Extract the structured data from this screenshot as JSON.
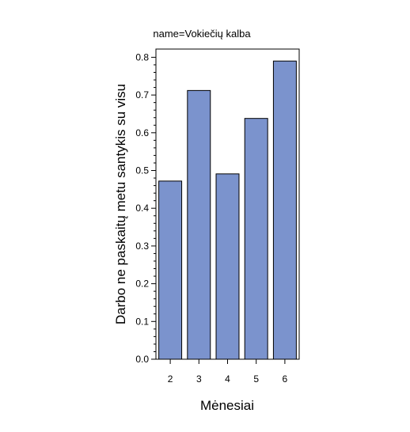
{
  "chart_data": {
    "type": "bar",
    "panel_title": "name=Vokiečių kalba",
    "categories": [
      "2",
      "3",
      "4",
      "5",
      "6"
    ],
    "values": [
      0.472,
      0.712,
      0.491,
      0.638,
      0.79
    ],
    "xlabel": "Mėnesiai",
    "ylabel": "Darbo ne paskaitų metu santykis su visu",
    "ylim": [
      0,
      0.82
    ],
    "yticks": [
      0.0,
      0.1,
      0.2,
      0.3,
      0.4,
      0.5,
      0.6,
      0.7,
      0.8
    ],
    "ytick_labels": [
      "0.0",
      "0.1",
      "0.2",
      "0.3",
      "0.4",
      "0.5",
      "0.6",
      "0.7",
      "0.8"
    ],
    "grid": false,
    "legend": "none",
    "colors": {
      "bar_fill": "#7b93cd",
      "bar_stroke": "#000000",
      "axis": "#000000"
    }
  }
}
